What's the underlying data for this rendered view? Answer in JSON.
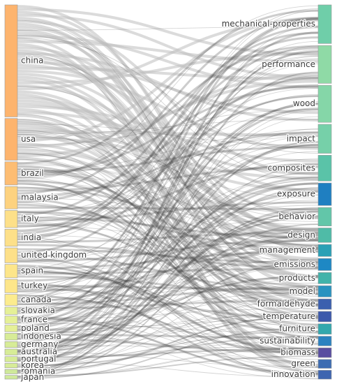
{
  "chart_data": {
    "type": "sankey",
    "title": "",
    "sources": [
      {
        "name": "china",
        "value": 150,
        "color": "#fdb46e"
      },
      {
        "name": "usa",
        "value": 56,
        "color": "#fdb46e"
      },
      {
        "name": "brazil",
        "value": 31,
        "color": "#fdbd73"
      },
      {
        "name": "malaysia",
        "value": 30,
        "color": "#fdd27f"
      },
      {
        "name": "italy",
        "value": 23,
        "color": "#fde089"
      },
      {
        "name": "india",
        "value": 23,
        "color": "#fde089"
      },
      {
        "name": "united kingdom",
        "value": 20,
        "color": "#fde089"
      },
      {
        "name": "spain",
        "value": 18,
        "color": "#fde68a"
      },
      {
        "name": "turkey",
        "value": 18,
        "color": "#fde68a"
      },
      {
        "name": "canada",
        "value": 15,
        "color": "#fcec8e"
      },
      {
        "name": "slovakia",
        "value": 10,
        "color": "#e5f097"
      },
      {
        "name": "france",
        "value": 10,
        "color": "#e5f097"
      },
      {
        "name": "poland",
        "value": 9,
        "color": "#e5f097"
      },
      {
        "name": "indonesia",
        "value": 9,
        "color": "#d7ec97"
      },
      {
        "name": "germany",
        "value": 8,
        "color": "#d7ec97"
      },
      {
        "name": "australia",
        "value": 8,
        "color": "#d7ec97"
      },
      {
        "name": "portugal",
        "value": 7,
        "color": "#d7ec97"
      },
      {
        "name": "korea",
        "value": 6,
        "color": "#d7ec97"
      },
      {
        "name": "romania",
        "value": 6,
        "color": "#cfe99a"
      },
      {
        "name": "japan",
        "value": 5,
        "color": "#cfe99a"
      }
    ],
    "targets": [
      {
        "name": "mechanical-properties",
        "value": 48,
        "color": "#6fcea9"
      },
      {
        "name": "performance",
        "value": 47,
        "color": "#8fdaa6"
      },
      {
        "name": "wood",
        "value": 46,
        "color": "#85d6a8"
      },
      {
        "name": "impact",
        "value": 36,
        "color": "#76d0a9"
      },
      {
        "name": "composites",
        "value": 32,
        "color": "#5ac3a8"
      },
      {
        "name": "exposure",
        "value": 28,
        "color": "#1f7fc1"
      },
      {
        "name": "behavior",
        "value": 23,
        "color": "#62c6a9"
      },
      {
        "name": "design",
        "value": 18,
        "color": "#4fbba7"
      },
      {
        "name": "management",
        "value": 15,
        "color": "#2aa0b5"
      },
      {
        "name": "emissions",
        "value": 15,
        "color": "#1e88c4"
      },
      {
        "name": "products",
        "value": 14,
        "color": "#42b3aa"
      },
      {
        "name": "model",
        "value": 14,
        "color": "#2a93c0"
      },
      {
        "name": "formaldehyde",
        "value": 13,
        "color": "#3b5fae"
      },
      {
        "name": "temperature",
        "value": 13,
        "color": "#3c59ab"
      },
      {
        "name": "furniture",
        "value": 13,
        "color": "#33a8ad"
      },
      {
        "name": "sustainability",
        "value": 12,
        "color": "#2c82c0"
      },
      {
        "name": "biomass",
        "value": 12,
        "color": "#5a4ea0"
      },
      {
        "name": "green",
        "value": 11,
        "color": "#3d6cb2"
      },
      {
        "name": "innovation",
        "value": 11,
        "color": "#3e65b0"
      }
    ],
    "link_color": "#a6a6a6"
  }
}
